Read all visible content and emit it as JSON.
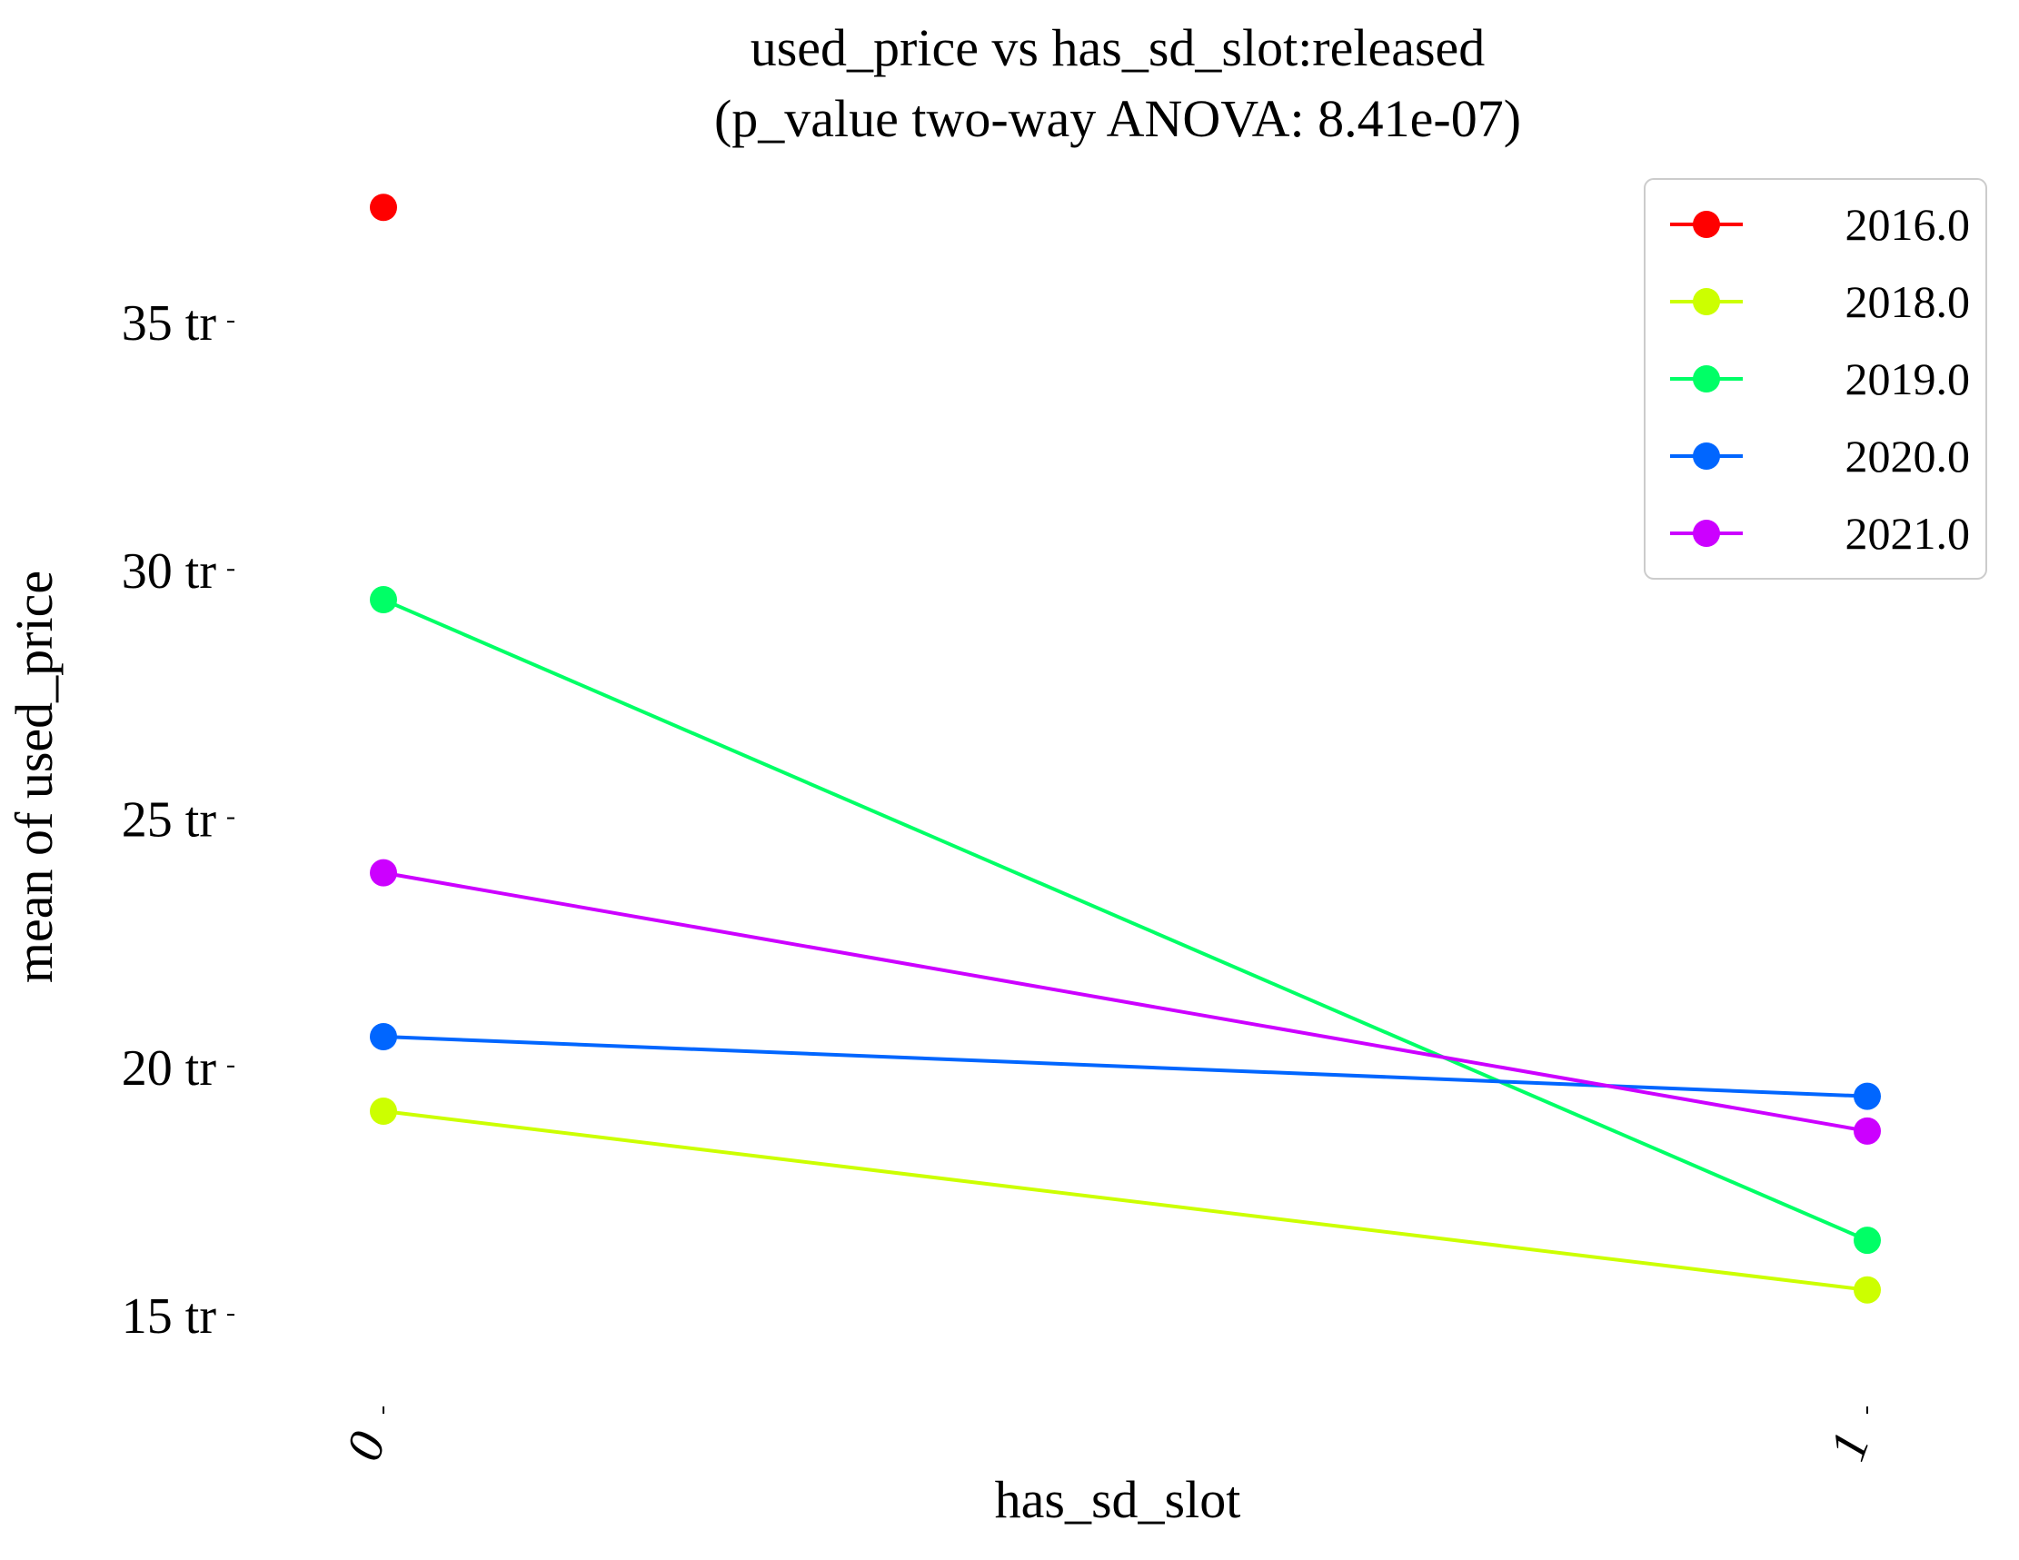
{
  "chart_data": {
    "type": "line",
    "title_line1": "used_price vs has_sd_slot:released",
    "title_line2": "(p_value two-way ANOVA: 8.41e-07)",
    "xlabel": "has_sd_slot",
    "ylabel": "mean of used_price",
    "categories": [
      "0",
      "1"
    ],
    "yticks": [
      {
        "value": 15,
        "label": "15 tr"
      },
      {
        "value": 20,
        "label": "20 tr"
      },
      {
        "value": 25,
        "label": "25 tr"
      },
      {
        "value": 30,
        "label": "30 tr"
      },
      {
        "value": 35,
        "label": "35 tr"
      }
    ],
    "ylim": [
      13.3,
      38.0
    ],
    "grid": false,
    "legend_position": "top-right",
    "series": [
      {
        "name": "2016.0",
        "color": "#ff0000",
        "values": [
          37.3,
          null
        ]
      },
      {
        "name": "2018.0",
        "color": "#ccff00",
        "values": [
          19.1,
          15.5
        ]
      },
      {
        "name": "2019.0",
        "color": "#00ff66",
        "values": [
          29.4,
          16.5
        ]
      },
      {
        "name": "2020.0",
        "color": "#0066ff",
        "values": [
          20.6,
          19.4
        ]
      },
      {
        "name": "2021.0",
        "color": "#cc00ff",
        "values": [
          23.9,
          18.7
        ]
      }
    ]
  }
}
